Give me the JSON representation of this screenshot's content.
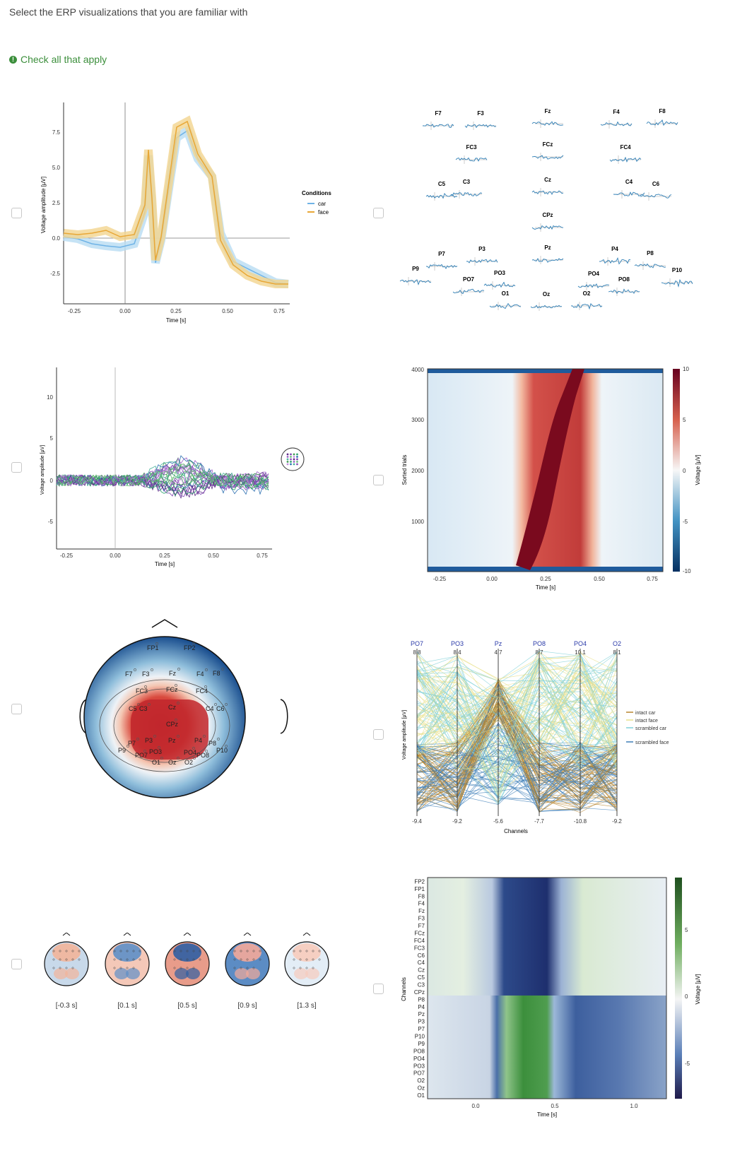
{
  "question": "Select the ERP visualizations that you are familiar with",
  "hint": "Check all that apply",
  "options": [
    {
      "id": "butterfly-ci"
    },
    {
      "id": "topo-erp"
    },
    {
      "id": "butterfly-channels"
    },
    {
      "id": "erpimage"
    },
    {
      "id": "topoplot"
    },
    {
      "id": "parallel-coords"
    },
    {
      "id": "topo-series"
    },
    {
      "id": "channel-image"
    }
  ],
  "fig1": {
    "xlabel": "Time [s]",
    "ylabel": "Voltage amplitude [µV]",
    "xticks": [
      "-0.25",
      "0.00",
      "0.25",
      "0.50",
      "0.75"
    ],
    "yticks": [
      "7.5",
      "5.0",
      "2.5",
      "0.0",
      "-2.5"
    ],
    "legend_title": "Conditions",
    "legend": [
      "car",
      "face"
    ],
    "colors": {
      "car": "#6fb3e6",
      "face": "#e8a736"
    }
  },
  "fig2": {
    "channels": [
      "F7",
      "F3",
      "Fz",
      "F4",
      "F8",
      "FC3",
      "FCz",
      "FC4",
      "C5",
      "C3",
      "Cz",
      "C4",
      "C6",
      "CPz",
      "P7",
      "P3",
      "Pz",
      "P4",
      "P8",
      "P9",
      "PO7",
      "PO3",
      "P10",
      "PO4",
      "PO8",
      "O1",
      "Oz",
      "O2"
    ]
  },
  "fig3": {
    "xlabel": "Time [s]",
    "ylabel": "Voltage amplitude [µV]",
    "xticks": [
      "-0.25",
      "0.00",
      "0.25",
      "0.50",
      "0.75"
    ],
    "yticks": [
      "10",
      "5",
      "0",
      "-5"
    ]
  },
  "fig4": {
    "xlabel": "Time [s]",
    "ylabel": "Sorted trials",
    "cbar_label": "Voltage [µV]",
    "xticks": [
      "-0.25",
      "0.00",
      "0.25",
      "0.50",
      "0.75"
    ],
    "yticks": [
      "4000",
      "3000",
      "2000",
      "1000"
    ],
    "cticks": [
      "10",
      "5",
      "0",
      "-5",
      "-10"
    ]
  },
  "fig5": {
    "labels": [
      "FP1",
      "FP2",
      "F7",
      "F3",
      "Fz",
      "F4",
      "F8",
      "FC3",
      "FCz",
      "FC4",
      "C5",
      "C3",
      "Cz",
      "C4",
      "C6",
      "CPz",
      "P7",
      "P3",
      "Pz",
      "P4",
      "P8",
      "P9",
      "PO7",
      "PO3",
      "PO4",
      "PO8",
      "P10",
      "O1",
      "Oz",
      "O2"
    ]
  },
  "fig6": {
    "channels": [
      "PO7",
      "PO3",
      "Pz",
      "PO8",
      "PO4",
      "O2"
    ],
    "top_values": [
      "8.8",
      "8.4",
      "4.7",
      "8.7",
      "10.1",
      "8.1"
    ],
    "bottom_values": [
      "-9.4",
      "-9.2",
      "-5.6",
      "-7.7",
      "-10.8",
      "-9.2"
    ],
    "xlabel": "Channels",
    "ylabel": "Voltage amplitude [µV]",
    "legend": [
      "intact car",
      "intact face",
      "scrambled car",
      "scrambled face"
    ],
    "colors": [
      "#b8862f",
      "#e8e08a",
      "#7fd0d8",
      "#3f7fb8"
    ]
  },
  "fig7": {
    "labels": [
      "[-0.3 s]",
      "[0.1 s]",
      "[0.5 s]",
      "[0.9 s]",
      "[1.3 s]"
    ]
  },
  "fig8": {
    "ylabel": "Channels",
    "xlabel": "Time [s]",
    "cbar_label": "Voltage [µV]",
    "channels": [
      "FP2",
      "FP1",
      "F8",
      "F4",
      "Fz",
      "F3",
      "F7",
      "FCz",
      "FC4",
      "FC3",
      "C6",
      "C4",
      "Cz",
      "C5",
      "C3",
      "CPz",
      "P8",
      "P4",
      "Pz",
      "P3",
      "P7",
      "P10",
      "P9",
      "PO8",
      "PO4",
      "PO3",
      "PO7",
      "O2",
      "Oz",
      "O1"
    ],
    "xticks": [
      "0.0",
      "0.5",
      "1.0"
    ],
    "cticks": [
      "5",
      "0",
      "-5"
    ]
  }
}
